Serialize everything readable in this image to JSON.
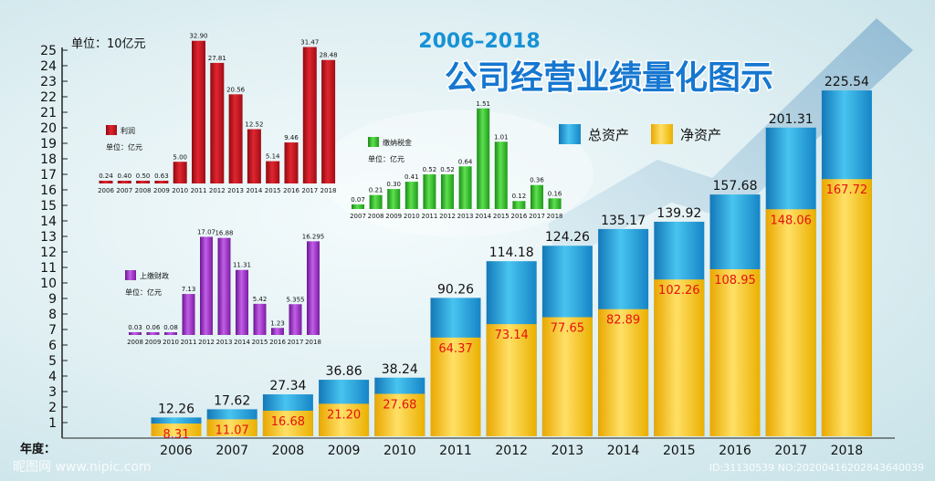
{
  "title": "公司经营业绩量化图示",
  "subtitle": "2006–2018",
  "main_unit": "单位：10亿元",
  "xaxis_label": "年度：",
  "watermark_left": "昵图网 www.nipic.com",
  "watermark_right": "ID:31130539 NO:20200416202843640039",
  "colors": {
    "total": "#2aa7dd",
    "net": "#f5c200",
    "profit": "#c8141e",
    "tax": "#33c42c",
    "fiscal": "#9b2fc2"
  },
  "chart_data": [
    {
      "type": "bar",
      "stacked_overlay": true,
      "categories": [
        "2006",
        "2007",
        "2008",
        "2009",
        "2010",
        "2011",
        "2012",
        "2013",
        "2014",
        "2015",
        "2016",
        "2017",
        "2018"
      ],
      "series": [
        {
          "name": "总资产",
          "values": [
            12.26,
            17.62,
            27.34,
            36.86,
            38.24,
            90.26,
            114.18,
            124.26,
            135.17,
            139.92,
            157.68,
            201.31,
            225.54
          ]
        },
        {
          "name": "净资产",
          "values": [
            8.31,
            11.07,
            16.68,
            21.2,
            27.68,
            64.37,
            73.14,
            77.65,
            82.89,
            102.26,
            108.95,
            148.06,
            167.72
          ]
        }
      ],
      "yticks": [
        "1",
        "2",
        "3",
        "4",
        "5",
        "6",
        "7",
        "8",
        "9",
        "10",
        "11",
        "12",
        "13",
        "14",
        "15",
        "16",
        "17",
        "18",
        "19",
        "20",
        "21",
        "22",
        "23",
        "24",
        "25"
      ]
    },
    {
      "type": "bar",
      "legend": "利润",
      "unit": "单位：亿元",
      "categories": [
        "2006",
        "2007",
        "2008",
        "2009",
        "2010",
        "2011",
        "2012",
        "2013",
        "2014",
        "2015",
        "2016",
        "2017",
        "2018"
      ],
      "values": [
        0.24,
        0.4,
        0.5,
        0.63,
        5.0,
        32.9,
        27.81,
        20.56,
        12.52,
        5.14,
        9.46,
        31.47,
        28.48
      ],
      "labels": [
        "0.24",
        "0.40",
        "0.50",
        "0.63",
        "5.00",
        "32.90",
        "27.81",
        "20.56",
        "12.52",
        "5.14",
        "9.46",
        "31.47",
        "28.48"
      ]
    },
    {
      "type": "bar",
      "legend": "缴纳税金",
      "unit": "单位：亿元",
      "categories": [
        "2007",
        "2008",
        "2009",
        "2010",
        "2011",
        "2012",
        "2013",
        "2014",
        "2015",
        "2016",
        "2017",
        "2018"
      ],
      "values": [
        0.07,
        0.21,
        0.3,
        0.41,
        0.52,
        0.52,
        0.64,
        1.51,
        1.01,
        0.12,
        0.36,
        0.16
      ],
      "labels": [
        "0.07",
        "0.21",
        "0.30",
        "0.41",
        "0.52",
        "0.52",
        "0.64",
        "1.51",
        "1.01",
        "0.12",
        "0.36",
        "0.16"
      ]
    },
    {
      "type": "bar",
      "legend": "上缴财政",
      "unit": "单位：亿元",
      "categories": [
        "2008",
        "2009",
        "2010",
        "2011",
        "2012",
        "2013",
        "2014",
        "2015",
        "2016",
        "2017",
        "2018"
      ],
      "values": [
        0.03,
        0.06,
        0.08,
        7.13,
        17.07,
        16.88,
        11.31,
        5.42,
        1.23,
        5.355,
        16.295
      ],
      "labels": [
        "0.03",
        "0.06",
        "0.08",
        "7.13",
        "17.07",
        "16.88",
        "11.31",
        "5.42",
        "1.23",
        "5.355",
        "16.295"
      ]
    }
  ]
}
